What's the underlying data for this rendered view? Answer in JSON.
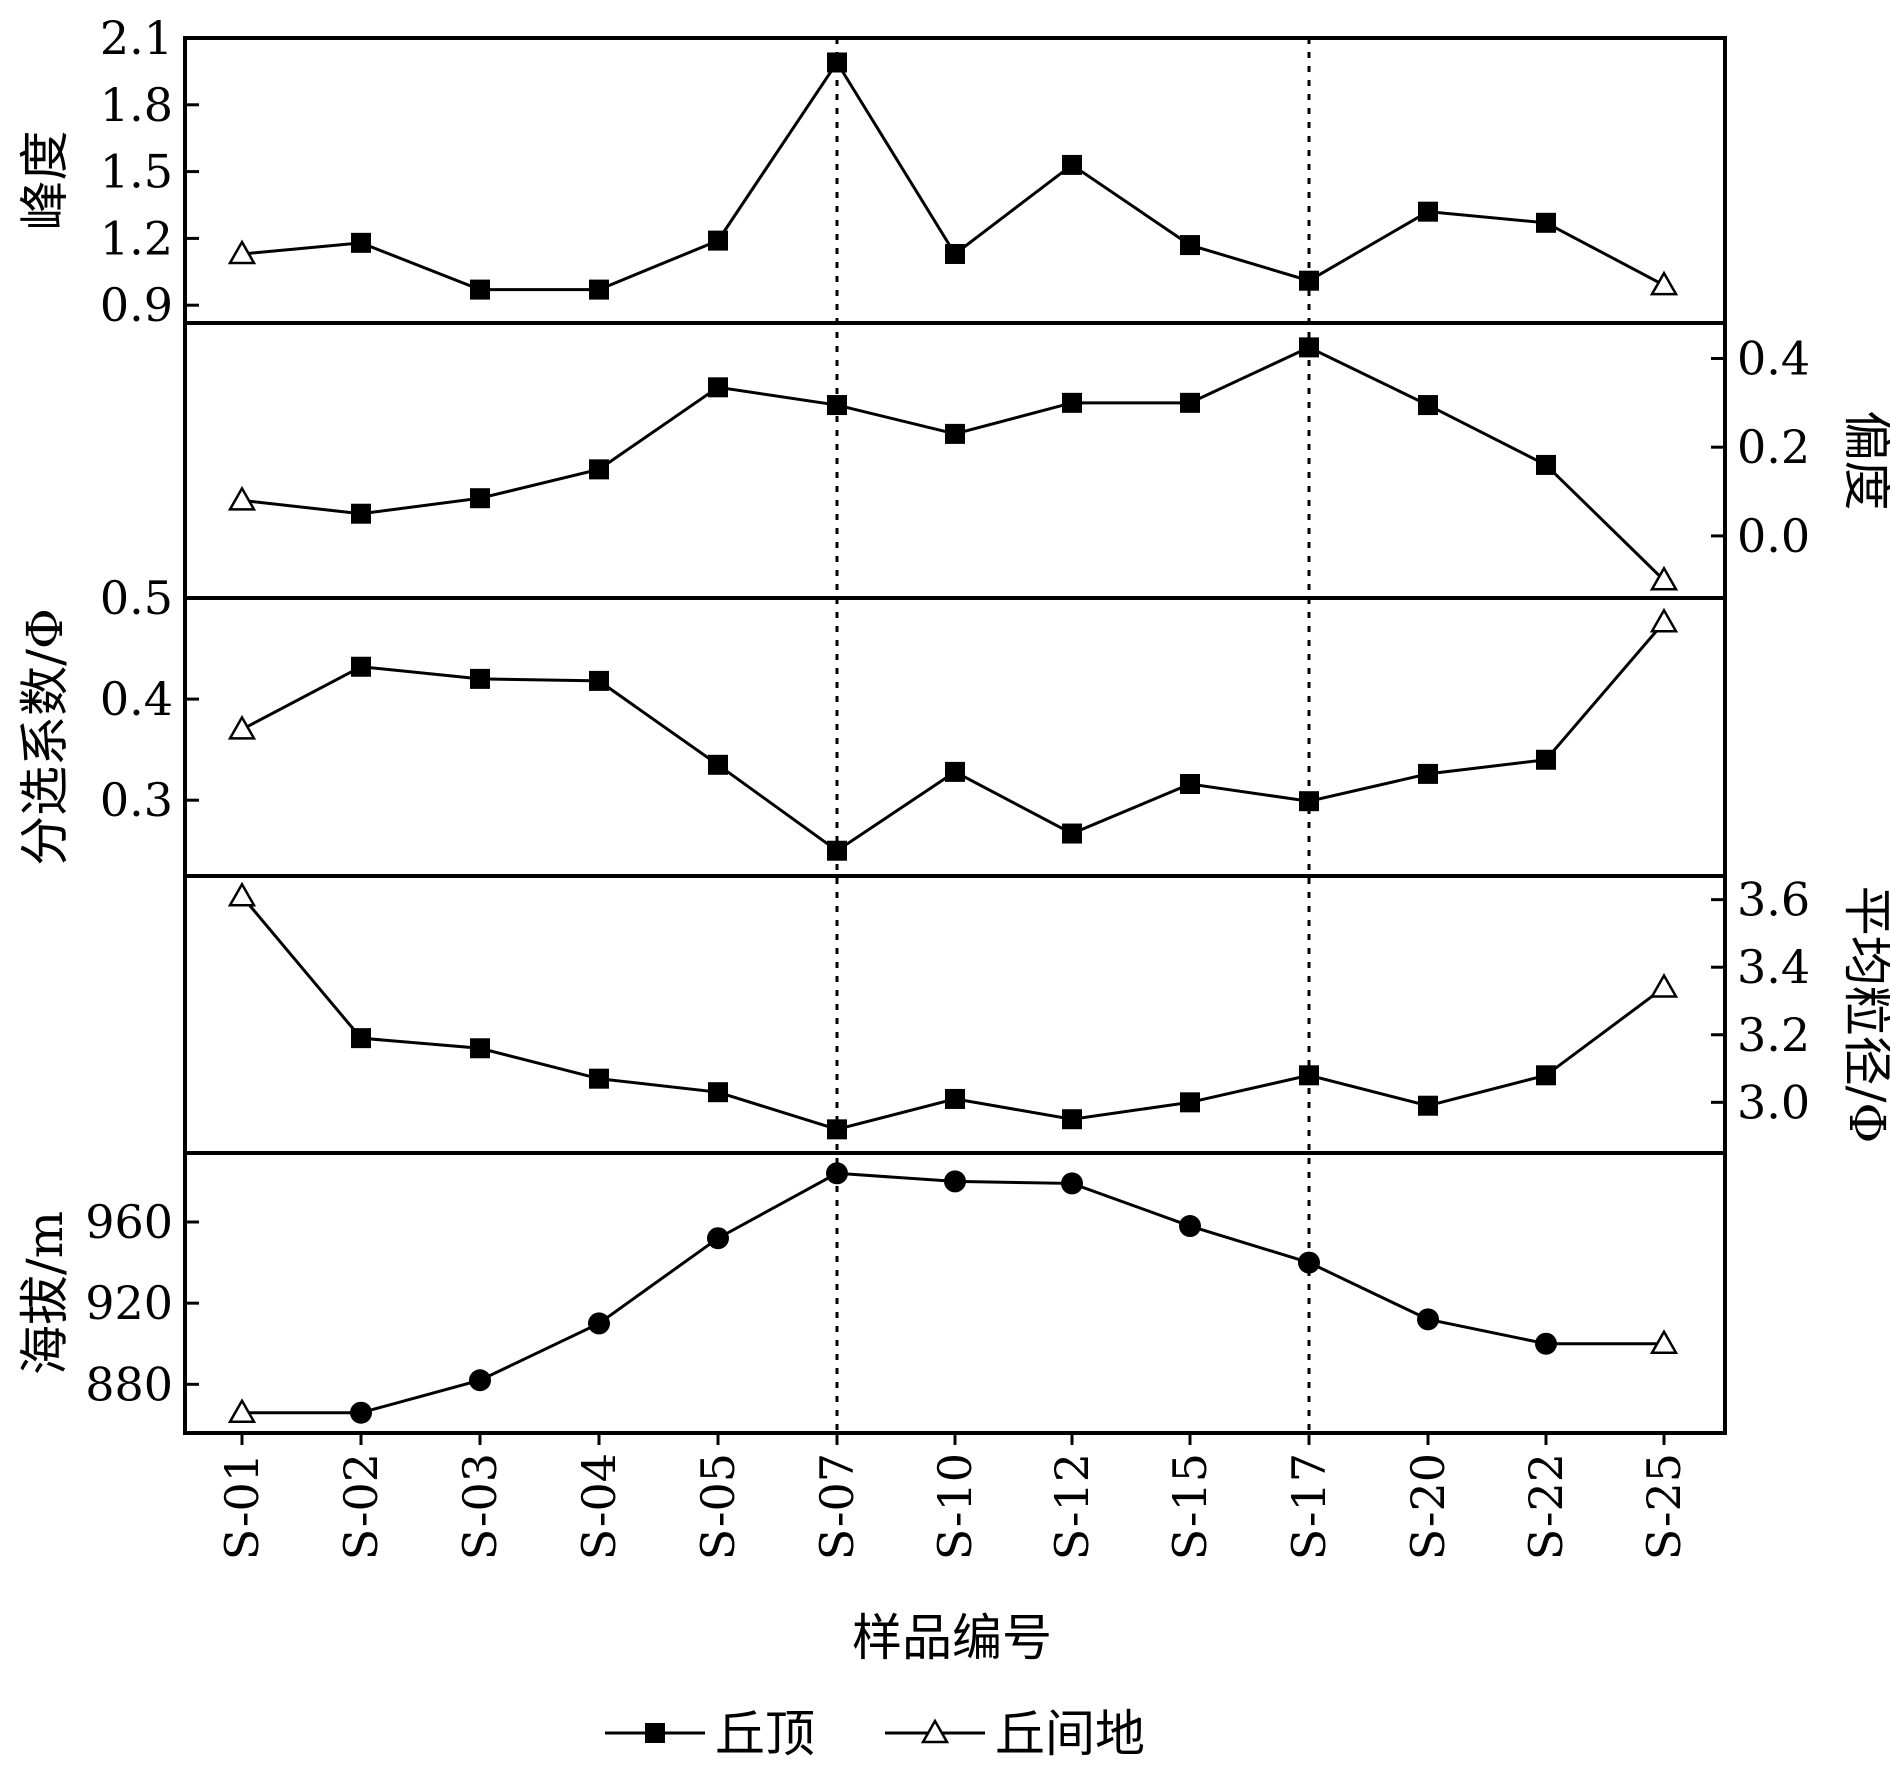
{
  "chart_data": {
    "type": "line",
    "categories": [
      "S-01",
      "S-02",
      "S-03",
      "S-04",
      "S-05",
      "S-07",
      "S-10",
      "S-12",
      "S-15",
      "S-17",
      "S-20",
      "S-22",
      "S-25"
    ],
    "xlabel": "样品编号",
    "dashed_at": [
      "S-07",
      "S-17"
    ],
    "legend": {
      "placement": "bottom-center",
      "items": [
        {
          "label": "丘顶",
          "marker": "filled"
        },
        {
          "label": "丘间地",
          "marker": "open-triangle"
        }
      ]
    },
    "panels": [
      {
        "id": "kurtosis",
        "ylabel": "峰度",
        "axis_side": "left",
        "ylim": [
          0.82,
          2.1
        ],
        "ticks": [
          0.9,
          1.2,
          1.5,
          1.8,
          2.1
        ],
        "tick_labels": [
          "0.9",
          "1.2",
          "1.5",
          "1.8",
          "2.1"
        ],
        "values": [
          1.13,
          1.18,
          0.97,
          0.97,
          1.19,
          1.99,
          1.13,
          1.53,
          1.17,
          1.01,
          1.32,
          1.27,
          0.99
        ],
        "markers": [
          "tri",
          "sq",
          "sq",
          "sq",
          "sq",
          "sq",
          "sq",
          "sq",
          "sq",
          "sq",
          "sq",
          "sq",
          "tri"
        ]
      },
      {
        "id": "skewness",
        "ylabel": "偏度",
        "axis_side": "right",
        "ylim": [
          -0.14,
          0.48
        ],
        "ticks": [
          0.0,
          0.2,
          0.4
        ],
        "tick_labels": [
          "0.0",
          "0.2",
          "0.4"
        ],
        "values": [
          0.08,
          0.05,
          0.085,
          0.15,
          0.335,
          0.295,
          0.23,
          0.3,
          0.3,
          0.425,
          0.295,
          0.16,
          -0.1
        ],
        "markers": [
          "tri",
          "sq",
          "sq",
          "sq",
          "sq",
          "sq",
          "sq",
          "sq",
          "sq",
          "sq",
          "sq",
          "sq",
          "tri"
        ]
      },
      {
        "id": "sorting",
        "ylabel": "分选系数/Φ",
        "axis_side": "left",
        "ylim": [
          0.225,
          0.5
        ],
        "ticks": [
          0.3,
          0.4,
          0.5
        ],
        "tick_labels": [
          "0.3",
          "0.4",
          "0.5"
        ],
        "values": [
          0.37,
          0.432,
          0.42,
          0.418,
          0.335,
          0.25,
          0.328,
          0.267,
          0.316,
          0.299,
          0.326,
          0.34,
          0.476
        ],
        "markers": [
          "tri",
          "sq",
          "sq",
          "sq",
          "sq",
          "sq",
          "sq",
          "sq",
          "sq",
          "sq",
          "sq",
          "sq",
          "tri"
        ]
      },
      {
        "id": "mean-grain-size",
        "ylabel": "平均粒径/Φ",
        "axis_side": "right",
        "ylim": [
          2.85,
          3.67
        ],
        "ticks": [
          3.0,
          3.2,
          3.4,
          3.6
        ],
        "tick_labels": [
          "3.0",
          "3.2",
          "3.4",
          "3.6"
        ],
        "values": [
          3.61,
          3.19,
          3.16,
          3.07,
          3.03,
          2.92,
          3.01,
          2.95,
          3.0,
          3.08,
          2.99,
          3.08,
          3.34
        ],
        "markers": [
          "tri",
          "sq",
          "sq",
          "sq",
          "sq",
          "sq",
          "sq",
          "sq",
          "sq",
          "sq",
          "sq",
          "sq",
          "tri"
        ]
      },
      {
        "id": "elevation",
        "ylabel": "海拔/m",
        "axis_side": "left",
        "ylim": [
          856,
          994
        ],
        "ticks": [
          880,
          920,
          960
        ],
        "tick_labels": [
          "880",
          "920",
          "960"
        ],
        "values": [
          866,
          866,
          882,
          910,
          952,
          984,
          980,
          979,
          958,
          940,
          912,
          900,
          900
        ],
        "markers": [
          "tri",
          "circ",
          "circ",
          "circ",
          "circ",
          "circ",
          "circ",
          "circ",
          "circ",
          "circ",
          "circ",
          "circ",
          "tri"
        ]
      }
    ]
  }
}
